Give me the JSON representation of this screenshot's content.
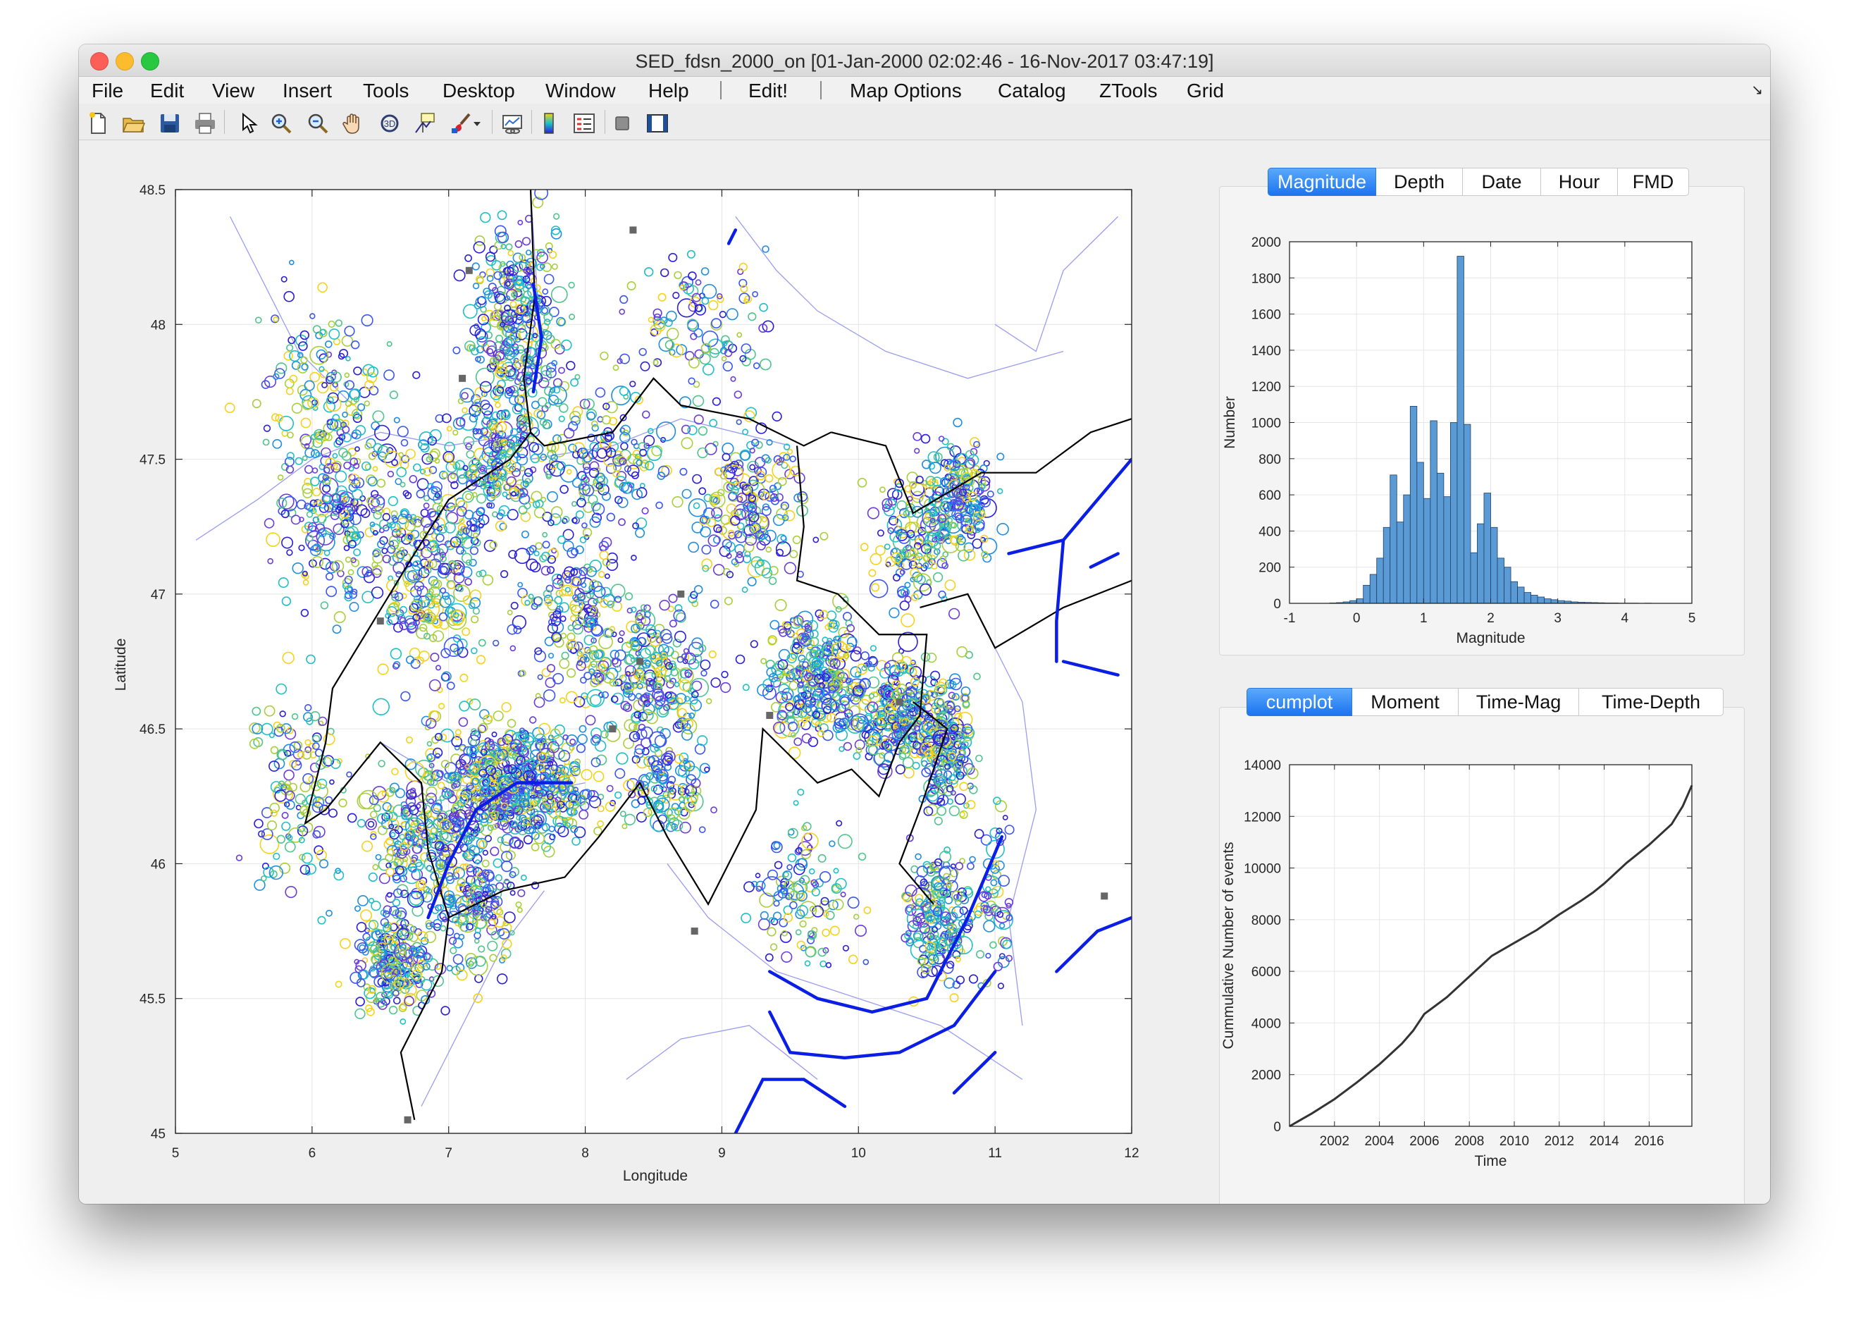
{
  "window": {
    "title": "SED_fdsn_2000_on [01-Jan-2000 02:02:46 - 16-Nov-2017 03:47:19]"
  },
  "menubar": {
    "items": [
      "File",
      "Edit",
      "View",
      "Insert",
      "Tools",
      "Desktop",
      "Window",
      "Help",
      "Edit!",
      "Map Options",
      "Catalog",
      "ZTools",
      "Grid"
    ],
    "corner_glyph": "↘"
  },
  "toolbar": {
    "tools": [
      "new-file-icon",
      "open-folder-icon",
      "save-icon",
      "print-icon",
      "pointer-icon",
      "zoom-in-icon",
      "zoom-out-icon",
      "pan-hand-icon",
      "rotate-3d-icon",
      "data-cursor-icon",
      "brush-icon",
      "dropdown-arrow-icon",
      "link-plot-icon",
      "colorbar-icon",
      "legend-icon",
      "hide-plot-tools-icon",
      "show-plot-tools-icon"
    ]
  },
  "map": {
    "xlabel": "Longitude",
    "ylabel": "Latitude",
    "xticks": [
      "5",
      "6",
      "7",
      "8",
      "9",
      "10",
      "11",
      "12"
    ],
    "yticks": [
      "48.5",
      "48",
      "47.5",
      "47",
      "46.5",
      "46",
      "45.5",
      "45"
    ],
    "xlim": [
      5,
      12
    ],
    "ylim": [
      45,
      48.5
    ],
    "marker_colors": [
      "#2a1ed8",
      "#3b55f0",
      "#1f8de0",
      "#1fbfc6",
      "#4fc48c",
      "#a8cf3a",
      "#f5d21a",
      "#6b3cd9"
    ],
    "border_color": "#000000",
    "fault_color": "#0a1ee6",
    "river_color": "#9a9cf0"
  },
  "histogram_panel": {
    "tabs": [
      "Magnitude",
      "Depth",
      "Date",
      "Hour",
      "FMD"
    ],
    "active_tab": "Magnitude",
    "color": "#5b9bd5"
  },
  "cumplot_panel": {
    "tabs": [
      "cumplot",
      "Moment",
      "Time-Mag",
      "Time-Depth"
    ],
    "active_tab": "cumplot"
  },
  "chart_data": [
    {
      "type": "bar",
      "title": "",
      "xlabel": "Magnitude",
      "ylabel": "Number",
      "xlim": [
        -1,
        5
      ],
      "ylim": [
        0,
        2000
      ],
      "xticks": [
        "-1",
        "0",
        "1",
        "2",
        "3",
        "4",
        "5"
      ],
      "yticks": [
        "0",
        "200",
        "400",
        "600",
        "800",
        "1000",
        "1200",
        "1400",
        "1600",
        "1800",
        "2000"
      ],
      "bin_width": 0.1,
      "bin_centers": [
        -0.35,
        -0.25,
        -0.15,
        -0.05,
        0.05,
        0.15,
        0.25,
        0.35,
        0.45,
        0.55,
        0.65,
        0.75,
        0.85,
        0.95,
        1.05,
        1.15,
        1.25,
        1.35,
        1.45,
        1.55,
        1.65,
        1.75,
        1.85,
        1.95,
        2.05,
        2.15,
        2.25,
        2.35,
        2.45,
        2.55,
        2.65,
        2.75,
        2.85,
        2.95,
        3.05,
        3.15,
        3.25,
        3.35,
        3.45,
        3.55,
        3.65,
        3.75,
        3.85,
        3.95,
        4.05,
        4.15,
        4.25,
        4.35
      ],
      "values": [
        2,
        4,
        8,
        15,
        25,
        100,
        160,
        250,
        420,
        710,
        450,
        600,
        1090,
        780,
        580,
        1010,
        720,
        590,
        1000,
        1920,
        990,
        280,
        440,
        610,
        420,
        250,
        200,
        120,
        90,
        60,
        45,
        35,
        25,
        20,
        15,
        12,
        8,
        6,
        5,
        4,
        3,
        2,
        2,
        1,
        1,
        1,
        0,
        1
      ]
    },
    {
      "type": "line",
      "title": "",
      "xlabel": "Time",
      "ylabel": "Cummulative Number of events",
      "xlim": [
        2000.0,
        2017.9
      ],
      "ylim": [
        0,
        14000
      ],
      "xticks": [
        "2002",
        "2004",
        "2006",
        "2008",
        "2010",
        "2012",
        "2014",
        "2016"
      ],
      "yticks": [
        "0",
        "2000",
        "4000",
        "6000",
        "8000",
        "10000",
        "12000",
        "14000"
      ],
      "x": [
        2000.0,
        2000.5,
        2001.0,
        2002.0,
        2003.0,
        2004.0,
        2005.0,
        2005.5,
        2006.0,
        2007.0,
        2008.0,
        2009.0,
        2010.0,
        2011.0,
        2012.0,
        2013.0,
        2013.5,
        2014.0,
        2015.0,
        2016.0,
        2017.0,
        2017.5,
        2017.9
      ],
      "y": [
        0,
        250,
        500,
        1050,
        1700,
        2400,
        3200,
        3700,
        4350,
        5000,
        5800,
        6600,
        7100,
        7600,
        8200,
        8750,
        9050,
        9400,
        10200,
        10900,
        11700,
        12400,
        13200
      ]
    }
  ]
}
